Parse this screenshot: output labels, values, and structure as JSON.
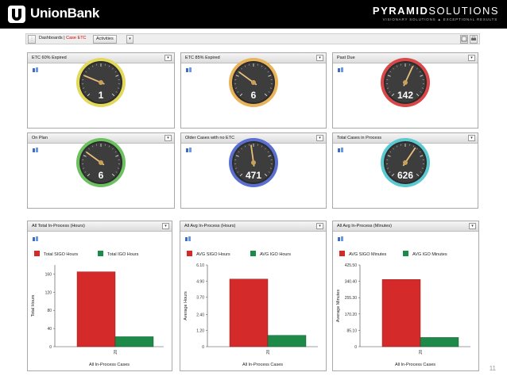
{
  "brand": {
    "left_name": "UnionBank",
    "right_name_bold": "PYRAMID",
    "right_name_light": "SOLUTIONS",
    "tagline": "VISIONARY SOLUTIONS  ▲  EXCEPTIONAL RESULTS"
  },
  "toolbar": {
    "breadcrumb_root": "Dashboards |",
    "breadcrumb_current": "Case ETC",
    "activities_label": "Activities",
    "dropdown_glyph": "▾"
  },
  "icons": {
    "dropdown": "▾"
  },
  "gauges": [
    {
      "title": "ETC 60% Expired",
      "value": "1",
      "ring_color": "#e2d85a",
      "needle": 1
    },
    {
      "title": "ETC 85% Expired",
      "value": "6",
      "ring_color": "#e8b35a",
      "needle": 6
    },
    {
      "title": "Past Due",
      "value": "142",
      "ring_color": "#d84848",
      "needle": 142
    },
    {
      "title": "On Plan",
      "value": "6",
      "ring_color": "#6cc060",
      "needle": 6
    },
    {
      "title": "Older Cases with no ETC",
      "value": "471",
      "ring_color": "#5a6fd0",
      "needle": 471
    },
    {
      "title": "Total Cases in Process",
      "value": "626",
      "ring_color": "#5cc8d0",
      "needle": 626
    }
  ],
  "gauge_scale_max": [
    4,
    20,
    240,
    20,
    1000,
    1000
  ],
  "chart_data": [
    {
      "type": "bar",
      "title": "All Total In-Process (Hours)",
      "series": [
        {
          "name": "Total SIGO Hours",
          "values": [
            165
          ]
        },
        {
          "name": "Total IGO Hours",
          "values": [
            22
          ]
        }
      ],
      "categories": [
        "28"
      ],
      "xlabel": "All In-Process Cases",
      "ylabel": "Total Hours",
      "ylim": [
        0,
        180
      ],
      "ticks": [
        "0",
        "40",
        "80",
        "120",
        "160"
      ],
      "tick_values": [
        0,
        40,
        80,
        120,
        160
      ]
    },
    {
      "type": "bar",
      "title": "All Avg In-Process (Hours)",
      "series": [
        {
          "name": "AVG SIGO Hours",
          "values": [
            5.05
          ]
        },
        {
          "name": "AVG IGO Hours",
          "values": [
            0.85
          ]
        }
      ],
      "categories": [
        "28"
      ],
      "xlabel": "All In-Process Cases",
      "ylabel": "Average Hours",
      "ylim": [
        0,
        6.1
      ],
      "ticks": [
        "0",
        "1.20",
        "2.40",
        "3.70",
        "4.90",
        "6.10"
      ],
      "tick_values": [
        0,
        1.2,
        2.4,
        3.7,
        4.9,
        6.1
      ]
    },
    {
      "type": "bar",
      "title": "All Avg In-Process (Minutes)",
      "series": [
        {
          "name": "AVG SIGO Minutes",
          "values": [
            350
          ]
        },
        {
          "name": "AVG IGO Minutes",
          "values": [
            48
          ]
        }
      ],
      "categories": [
        "28"
      ],
      "xlabel": "All In-Process Cases",
      "ylabel": "Average Minutes",
      "ylim": [
        0,
        425.5
      ],
      "ticks": [
        "0",
        "85.10",
        "170.20",
        "255.30",
        "340.40",
        "425.50"
      ],
      "tick_values": [
        0,
        85.1,
        170.2,
        255.3,
        340.4,
        425.5
      ]
    }
  ],
  "colors": {
    "sigo": "#d42a2a",
    "igo": "#1d8a4a"
  },
  "page_number": "11"
}
